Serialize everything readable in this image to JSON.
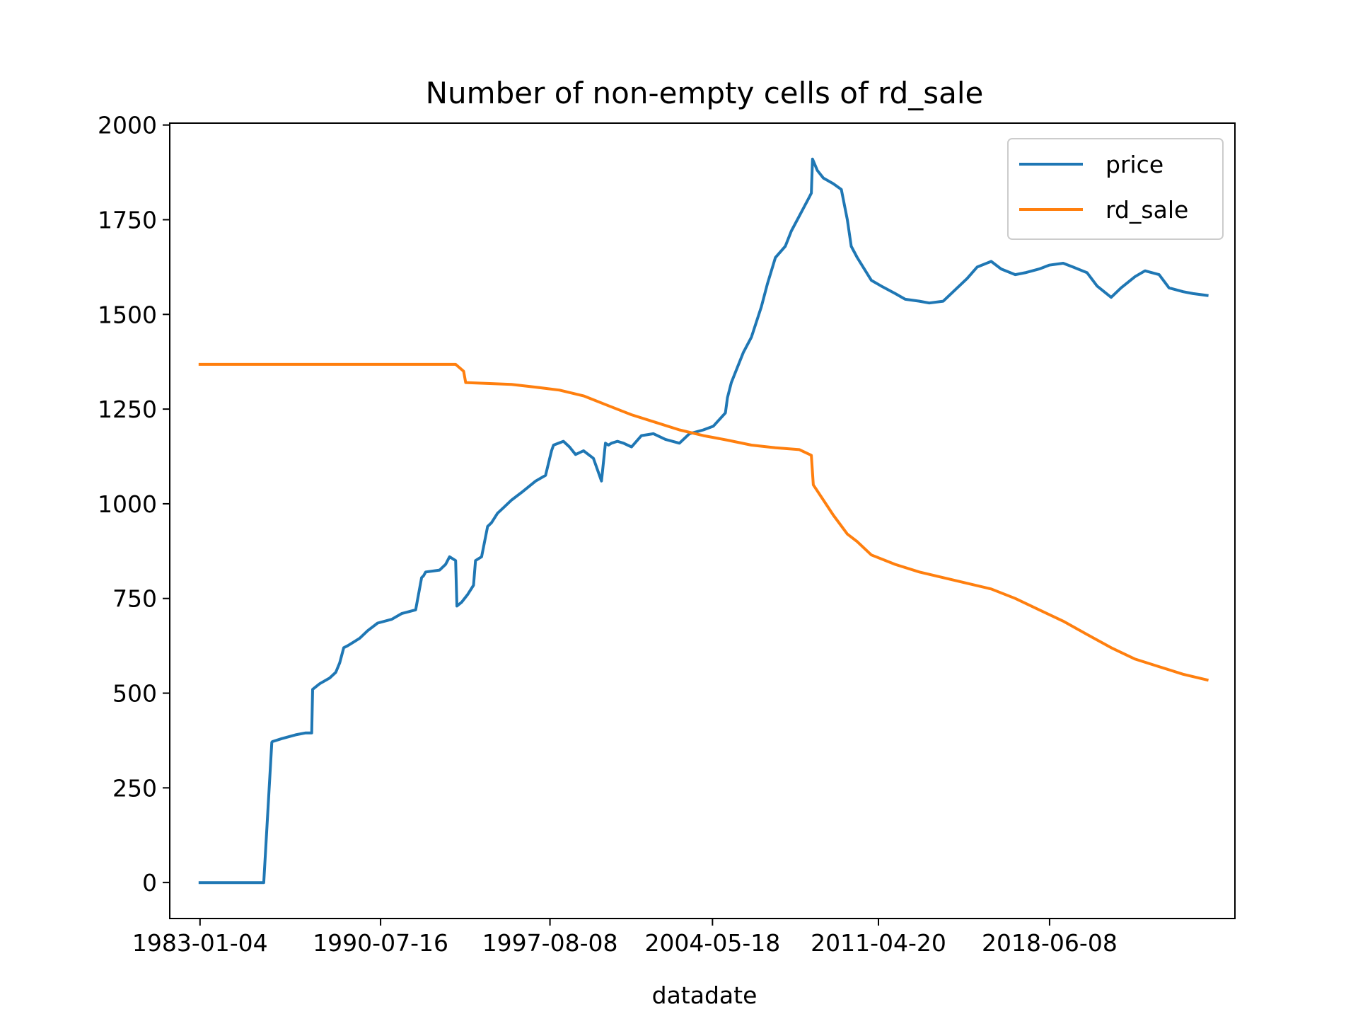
{
  "chart_data": {
    "type": "line",
    "title": "Number of non-empty cells of rd_sale",
    "xlabel": "datadate",
    "ylabel": "",
    "ylim": [
      -95,
      2005
    ],
    "xlim": [
      "1981-09-30",
      "2026-03-01"
    ],
    "grid": false,
    "legend_position": "upper right",
    "yticks": [
      0,
      250,
      500,
      750,
      1000,
      1250,
      1500,
      1750,
      2000
    ],
    "y_tick_labels": [
      "0",
      "250",
      "500",
      "750",
      "1000",
      "1250",
      "1500",
      "1750",
      "2000"
    ],
    "xticks": [
      "1983-01-04",
      "1990-07-16",
      "1997-08-08",
      "2004-05-18",
      "2011-04-20",
      "2018-06-08"
    ],
    "x_tick_labels": [
      "1983-01-04",
      "1990-07-16",
      "1997-08-08",
      "2004-05-18",
      "2011-04-20",
      "2018-06-08"
    ],
    "series": [
      {
        "name": "price",
        "color": "#1f77b4",
        "x": [
          "1983-01-04",
          "1985-09-01",
          "1986-01-01",
          "1986-01-10",
          "1986-06-01",
          "1987-01-01",
          "1987-06-01",
          "1987-09-01",
          "1987-09-15",
          "1988-01-01",
          "1988-06-01",
          "1988-09-01",
          "1988-11-01",
          "1989-01-01",
          "1989-03-01",
          "1989-06-01",
          "1989-09-01",
          "1990-01-01",
          "1990-06-01",
          "1991-01-01",
          "1991-06-01",
          "1992-01-01",
          "1992-04-01",
          "1992-05-01",
          "1992-06-01",
          "1993-01-01",
          "1993-04-01",
          "1993-06-01",
          "1993-09-01",
          "1993-09-20",
          "1993-12-01",
          "1994-03-01",
          "1994-06-01",
          "1994-07-01",
          "1994-10-01",
          "1995-01-01",
          "1995-03-01",
          "1995-06-01",
          "1995-09-01",
          "1996-01-01",
          "1996-06-01",
          "1997-01-01",
          "1997-06-01",
          "1997-09-01",
          "1997-10-01",
          "1998-03-01",
          "1998-06-01",
          "1998-09-01",
          "1999-01-01",
          "1999-06-01",
          "1999-10-01",
          "1999-12-01",
          "2000-01-15",
          "2000-03-01",
          "2000-06-01",
          "2000-09-01",
          "2001-01-01",
          "2001-06-01",
          "2001-12-01",
          "2002-06-01",
          "2003-01-01",
          "2003-06-01",
          "2004-01-01",
          "2004-06-01",
          "2004-12-01",
          "2005-01-01",
          "2005-03-01",
          "2005-06-01",
          "2005-09-01",
          "2006-01-01",
          "2006-06-01",
          "2006-09-01",
          "2007-01-01",
          "2007-06-01",
          "2007-09-01",
          "2008-01-01",
          "2008-06-01",
          "2008-07-01",
          "2008-07-20",
          "2008-10-01",
          "2009-01-01",
          "2009-06-01",
          "2009-10-01",
          "2010-01-01",
          "2010-03-01",
          "2010-06-01",
          "2011-01-01",
          "2011-06-01",
          "2012-01-01",
          "2012-06-01",
          "2013-01-01",
          "2013-06-01",
          "2014-01-01",
          "2014-06-01",
          "2015-01-01",
          "2015-06-01",
          "2016-01-01",
          "2016-06-01",
          "2017-01-01",
          "2017-06-01",
          "2018-01-01",
          "2018-06-01",
          "2019-01-01",
          "2019-06-01",
          "2020-01-01",
          "2020-06-01",
          "2021-01-01",
          "2021-06-01",
          "2022-01-01",
          "2022-06-01",
          "2023-01-01",
          "2023-06-01",
          "2024-01-01",
          "2024-06-01",
          "2025-01-01"
        ],
        "values": [
          0,
          0,
          370,
          372,
          380,
          390,
          395,
          395,
          510,
          525,
          540,
          555,
          580,
          620,
          625,
          635,
          645,
          665,
          685,
          695,
          710,
          720,
          805,
          810,
          820,
          825,
          840,
          860,
          850,
          730,
          740,
          760,
          785,
          850,
          860,
          940,
          950,
          975,
          990,
          1010,
          1030,
          1060,
          1075,
          1140,
          1155,
          1165,
          1150,
          1130,
          1140,
          1120,
          1060,
          1160,
          1155,
          1160,
          1165,
          1160,
          1150,
          1180,
          1185,
          1170,
          1160,
          1185,
          1195,
          1205,
          1240,
          1280,
          1320,
          1360,
          1400,
          1440,
          1520,
          1580,
          1650,
          1680,
          1720,
          1760,
          1810,
          1820,
          1910,
          1880,
          1860,
          1845,
          1830,
          1750,
          1680,
          1650,
          1590,
          1575,
          1555,
          1540,
          1535,
          1530,
          1535,
          1560,
          1595,
          1625,
          1640,
          1620,
          1605,
          1610,
          1620,
          1630,
          1635,
          1625,
          1610,
          1575,
          1545,
          1570,
          1600,
          1615,
          1605,
          1570,
          1560,
          1555,
          1550
        ]
      },
      {
        "name": "rd_sale",
        "color": "#ff7f0e",
        "x": [
          "1983-01-04",
          "1990-01-01",
          "1993-09-01",
          "1994-01-01",
          "1994-02-01",
          "1996-01-01",
          "1997-01-01",
          "1998-01-01",
          "1999-01-01",
          "2000-01-01",
          "2001-01-01",
          "2002-01-01",
          "2003-01-01",
          "2004-01-01",
          "2005-01-01",
          "2006-01-01",
          "2007-01-01",
          "2008-01-01",
          "2008-07-01",
          "2008-08-01",
          "2009-01-01",
          "2009-06-01",
          "2010-01-01",
          "2010-06-01",
          "2011-01-01",
          "2012-01-01",
          "2013-01-01",
          "2014-01-01",
          "2015-01-01",
          "2016-01-01",
          "2017-01-01",
          "2018-01-01",
          "2019-01-01",
          "2020-01-01",
          "2021-01-01",
          "2022-01-01",
          "2023-01-01",
          "2024-01-01",
          "2025-01-01"
        ],
        "values": [
          1368,
          1368,
          1368,
          1350,
          1320,
          1315,
          1308,
          1300,
          1285,
          1260,
          1235,
          1215,
          1195,
          1180,
          1168,
          1155,
          1148,
          1143,
          1128,
          1050,
          1010,
          970,
          920,
          900,
          865,
          840,
          820,
          805,
          790,
          775,
          750,
          720,
          690,
          655,
          620,
          590,
          570,
          550,
          535
        ]
      }
    ]
  }
}
